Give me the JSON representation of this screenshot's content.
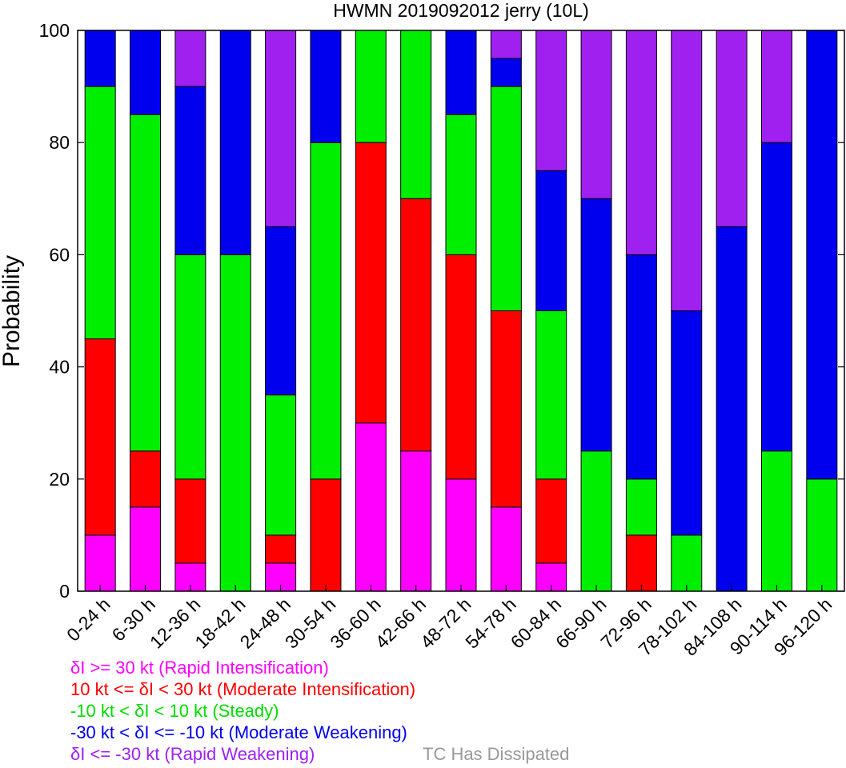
{
  "chart_data": {
    "type": "bar",
    "stacked": true,
    "title": "HWMN 2019092012 jerry (10L)",
    "xlabel": "",
    "ylabel": "Probability",
    "ylim": [
      0,
      100
    ],
    "yticks": [
      0,
      20,
      40,
      60,
      80,
      100
    ],
    "grid": false,
    "categories": [
      "0-24 h",
      "6-30 h",
      "12-36 h",
      "18-42 h",
      "24-48 h",
      "30-54 h",
      "36-60 h",
      "42-66 h",
      "48-72 h",
      "54-78 h",
      "60-84 h",
      "66-90 h",
      "72-96 h",
      "78-102 h",
      "84-108 h",
      "90-114 h",
      "96-120 h"
    ],
    "series": [
      {
        "name": "δI >= 30 kt (Rapid Intensification)",
        "color": "#ff00ff",
        "values": [
          10,
          15,
          5,
          0,
          5,
          0,
          30,
          25,
          20,
          15,
          5,
          0,
          0,
          0,
          0,
          0,
          0
        ]
      },
      {
        "name": "10 kt <= δI < 30 kt (Moderate Intensification)",
        "color": "#ff0000",
        "values": [
          35,
          10,
          15,
          0,
          5,
          20,
          50,
          45,
          40,
          35,
          15,
          0,
          10,
          0,
          0,
          0,
          0
        ]
      },
      {
        "name": "-10 kt < δI < 10 kt (Steady)",
        "color": "#00ee00",
        "values": [
          45,
          60,
          40,
          60,
          25,
          60,
          20,
          30,
          25,
          40,
          30,
          25,
          10,
          10,
          0,
          25,
          20
        ]
      },
      {
        "name": "-30 kt < δI <= -10 kt (Moderate Weakening)",
        "color": "#0000ee",
        "values": [
          10,
          15,
          30,
          40,
          30,
          20,
          0,
          0,
          15,
          5,
          25,
          45,
          40,
          40,
          65,
          55,
          80
        ]
      },
      {
        "name": "δI <= -30 kt (Rapid Weakening)",
        "color": "#a020f0",
        "values": [
          0,
          0,
          10,
          0,
          35,
          0,
          0,
          0,
          0,
          5,
          25,
          30,
          40,
          50,
          35,
          20,
          0
        ]
      }
    ],
    "legend": {
      "placement": "bottom-left",
      "entries": [
        {
          "text": "δI >= 30 kt (Rapid Intensification)",
          "color": "#ff00ff"
        },
        {
          "text": "10 kt <= δI < 30 kt (Moderate Intensification)",
          "color": "#ff0000"
        },
        {
          "text": "-10 kt < δI < 10 kt (Steady)",
          "color": "#00dd00"
        },
        {
          "text": "-30 kt < δI <= -10 kt (Moderate Weakening)",
          "color": "#0000ee"
        },
        {
          "text": "δI <= -30 kt (Rapid Weakening)",
          "color": "#a020f0"
        }
      ],
      "dissipated": {
        "text": "TC Has Dissipated",
        "color": "#999999"
      }
    }
  }
}
